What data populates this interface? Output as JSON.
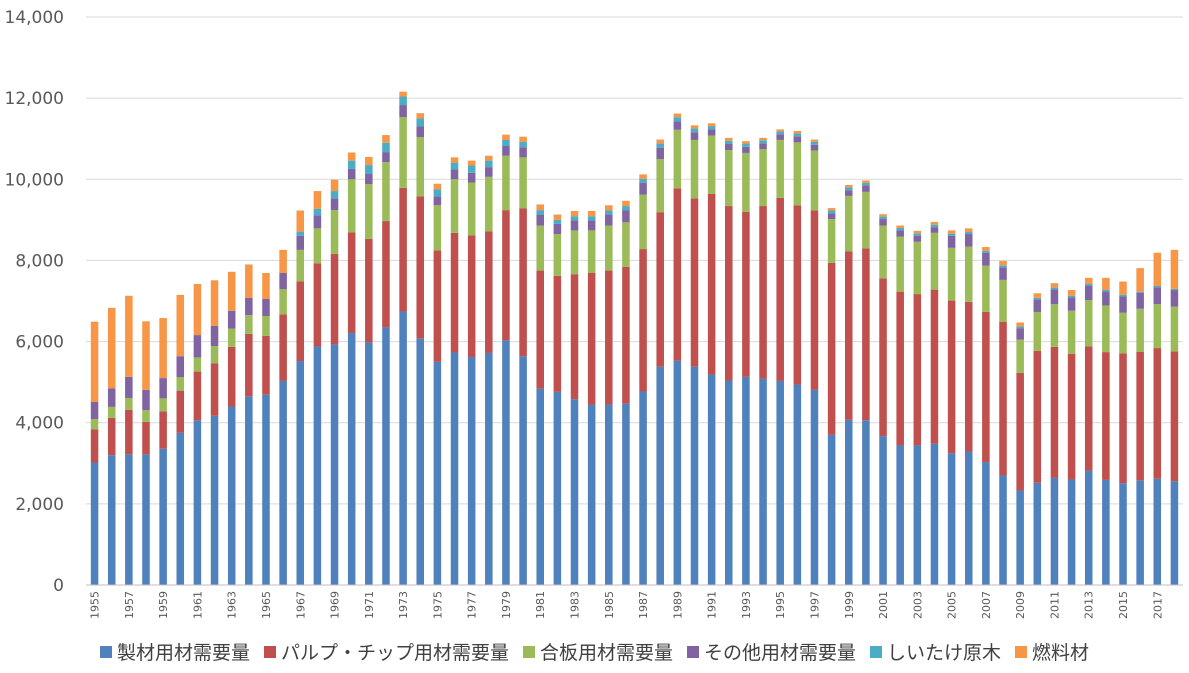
{
  "chart_data": {
    "type": "bar",
    "stacked": true,
    "title": "",
    "xlabel": "",
    "ylabel": "",
    "ylim": [
      0,
      14000
    ],
    "yticks": [
      "0",
      "2,000",
      "4,000",
      "6,000",
      "8,000",
      "10,000",
      "12,000",
      "14,000"
    ],
    "grid": true,
    "legend_position": "bottom",
    "categories": [
      "1955",
      "1956",
      "1957",
      "1958",
      "1959",
      "1960",
      "1961",
      "1962",
      "1963",
      "1964",
      "1965",
      "1966",
      "1967",
      "1968",
      "1969",
      "1970",
      "1971",
      "1972",
      "1973",
      "1974",
      "1975",
      "1976",
      "1977",
      "1978",
      "1979",
      "1980",
      "1981",
      "1982",
      "1983",
      "1984",
      "1985",
      "1986",
      "1987",
      "1988",
      "1989",
      "1990",
      "1991",
      "1992",
      "1993",
      "1994",
      "1995",
      "1996",
      "1997",
      "1998",
      "1999",
      "2000",
      "2001",
      "2002",
      "2003",
      "2004",
      "2005",
      "2006",
      "2007",
      "2008",
      "2009",
      "2010",
      "2011",
      "2012",
      "2013",
      "2014",
      "2015",
      "2016",
      "2017",
      "2018"
    ],
    "xtick_labels": [
      "1955",
      "",
      "1957",
      "",
      "1959",
      "",
      "1961",
      "",
      "1963",
      "",
      "1965",
      "",
      "1967",
      "",
      "1969",
      "",
      "1971",
      "",
      "1973",
      "",
      "1975",
      "",
      "1977",
      "",
      "1979",
      "",
      "1981",
      "",
      "1983",
      "",
      "1985",
      "",
      "1987",
      "",
      "1989",
      "",
      "1991",
      "",
      "1993",
      "",
      "1995",
      "",
      "1997",
      "",
      "1999",
      "",
      "2001",
      "",
      "2003",
      "",
      "2005",
      "",
      "2007",
      "",
      "2009",
      "",
      "2011",
      "",
      "2013",
      "",
      "2015",
      "",
      "2017",
      ""
    ],
    "series": [
      {
        "name": "製材用材需要量",
        "color": "#4f81bd",
        "values": [
          3020,
          3200,
          3220,
          3220,
          3360,
          3750,
          4060,
          4170,
          4400,
          4650,
          4690,
          5030,
          5520,
          5880,
          5930,
          6210,
          5980,
          6350,
          6740,
          6080,
          5500,
          5730,
          5620,
          5720,
          6030,
          5640,
          4840,
          4760,
          4580,
          4450,
          4450,
          4470,
          4770,
          5380,
          5530,
          5380,
          5190,
          5040,
          5130,
          5080,
          5030,
          4940,
          4810,
          3700,
          4070,
          4060,
          3670,
          3440,
          3440,
          3480,
          3250,
          3290,
          3030,
          2700,
          2330,
          2520,
          2640,
          2600,
          2820,
          2590,
          2510,
          2580,
          2620,
          2560
        ]
      },
      {
        "name": "パルプ・チップ用材需要量",
        "color": "#c0504d",
        "values": [
          820,
          920,
          1100,
          800,
          920,
          1040,
          1200,
          1290,
          1470,
          1540,
          1450,
          1640,
          1960,
          2050,
          2230,
          2480,
          2550,
          2620,
          3050,
          3500,
          2750,
          2950,
          3000,
          3000,
          3210,
          3640,
          2910,
          2860,
          3080,
          3240,
          3300,
          3370,
          3510,
          3810,
          4250,
          4150,
          4450,
          4300,
          4070,
          4260,
          4510,
          4420,
          4420,
          4240,
          4150,
          4240,
          3890,
          3790,
          3730,
          3800,
          3760,
          3690,
          3700,
          3790,
          2900,
          3250,
          3230,
          3100,
          3060,
          3150,
          3200,
          3170,
          3220,
          3200
        ]
      },
      {
        "name": "合板用材需要量",
        "color": "#9bbb59",
        "values": [
          250,
          270,
          290,
          290,
          320,
          330,
          350,
          430,
          450,
          460,
          490,
          620,
          780,
          860,
          1080,
          1310,
          1350,
          1450,
          1740,
          1460,
          1110,
          1320,
          1300,
          1340,
          1340,
          1260,
          1110,
          1030,
          1080,
          1050,
          1110,
          1100,
          1340,
          1310,
          1440,
          1440,
          1440,
          1380,
          1450,
          1400,
          1430,
          1550,
          1480,
          1080,
          1370,
          1390,
          1300,
          1360,
          1290,
          1400,
          1300,
          1360,
          1140,
          1030,
          820,
          960,
          1050,
          1060,
          1140,
          1150,
          1000,
          1060,
          1080,
          1100
        ]
      },
      {
        "name": "その他用材需要量",
        "color": "#8064a2",
        "values": [
          420,
          460,
          520,
          500,
          500,
          520,
          550,
          500,
          440,
          430,
          420,
          400,
          350,
          320,
          290,
          260,
          250,
          250,
          300,
          260,
          220,
          240,
          240,
          240,
          240,
          250,
          260,
          250,
          250,
          250,
          270,
          300,
          290,
          280,
          210,
          190,
          150,
          150,
          150,
          140,
          140,
          150,
          140,
          140,
          140,
          160,
          160,
          150,
          150,
          140,
          300,
          310,
          320,
          310,
          280,
          310,
          370,
          330,
          360,
          350,
          400,
          390,
          420,
          410
        ]
      },
      {
        "name": "しいたけ原木",
        "color": "#4bacc6",
        "values": [
          0,
          0,
          0,
          0,
          0,
          0,
          0,
          0,
          0,
          0,
          0,
          0,
          100,
          160,
          180,
          200,
          220,
          230,
          210,
          200,
          170,
          170,
          180,
          160,
          150,
          130,
          120,
          100,
          100,
          100,
          100,
          100,
          100,
          100,
          100,
          90,
          80,
          80,
          80,
          80,
          70,
          70,
          70,
          70,
          70,
          60,
          60,
          60,
          60,
          60,
          50,
          50,
          50,
          50,
          40,
          40,
          40,
          40,
          40,
          40,
          40,
          30,
          30,
          30
        ]
      },
      {
        "name": "燃料材",
        "color": "#f79646",
        "values": [
          1980,
          1980,
          2000,
          1690,
          1480,
          1510,
          1260,
          1120,
          960,
          820,
          640,
          570,
          520,
          440,
          280,
          200,
          200,
          190,
          120,
          130,
          140,
          130,
          120,
          120,
          130,
          130,
          140,
          130,
          130,
          130,
          130,
          130,
          110,
          100,
          90,
          80,
          70,
          70,
          60,
          60,
          50,
          60,
          60,
          60,
          60,
          60,
          60,
          60,
          60,
          70,
          80,
          90,
          90,
          110,
          100,
          110,
          110,
          140,
          150,
          290,
          330,
          580,
          820,
          960
        ]
      }
    ]
  }
}
